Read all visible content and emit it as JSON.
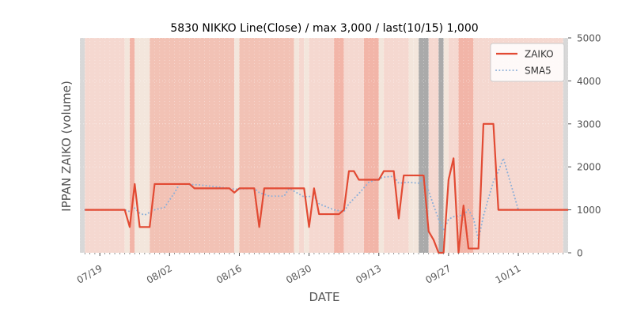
{
  "chart_data": {
    "type": "line",
    "title": "5830 NIKKO Line(Close) / max 3,000 / last(10/15) 1,000",
    "xlabel": "DATE",
    "ylabel": "IPPAN ZAIKO (volume)",
    "ylim": [
      0,
      5000
    ],
    "yticks": [
      0,
      1000,
      2000,
      3000,
      4000,
      5000
    ],
    "ytick_labels": [
      "0",
      "1000",
      "2000",
      "3000",
      "4000",
      "5000"
    ],
    "y_axis_side": "right",
    "x_start": "2021-07-15",
    "x_end": "2021-10-21",
    "xticks": [
      "2021-07-19",
      "2021-08-02",
      "2021-08-16",
      "2021-08-30",
      "2021-09-13",
      "2021-09-27",
      "2021-10-11"
    ],
    "xtick_labels": [
      "07/19",
      "08/02",
      "08/16",
      "08/30",
      "09/13",
      "09/27",
      "10/11"
    ],
    "grid": true,
    "legend_position": "top-right",
    "series": [
      {
        "name": "ZAIKO",
        "color": "#e24a33",
        "style": "solid",
        "points": [
          [
            "2021-07-16",
            1000
          ],
          [
            "2021-07-24",
            1000
          ],
          [
            "2021-07-25",
            600
          ],
          [
            "2021-07-26",
            1600
          ],
          [
            "2021-07-27",
            600
          ],
          [
            "2021-07-29",
            600
          ],
          [
            "2021-07-30",
            1600
          ],
          [
            "2021-08-06",
            1600
          ],
          [
            "2021-08-07",
            1500
          ],
          [
            "2021-08-14",
            1500
          ],
          [
            "2021-08-15",
            1400
          ],
          [
            "2021-08-16",
            1500
          ],
          [
            "2021-08-19",
            1500
          ],
          [
            "2021-08-20",
            600
          ],
          [
            "2021-08-21",
            1500
          ],
          [
            "2021-08-29",
            1500
          ],
          [
            "2021-08-30",
            600
          ],
          [
            "2021-08-31",
            1500
          ],
          [
            "2021-09-01",
            900
          ],
          [
            "2021-09-05",
            900
          ],
          [
            "2021-09-06",
            1000
          ],
          [
            "2021-09-07",
            1900
          ],
          [
            "2021-09-08",
            1900
          ],
          [
            "2021-09-09",
            1700
          ],
          [
            "2021-09-13",
            1700
          ],
          [
            "2021-09-14",
            1900
          ],
          [
            "2021-09-16",
            1900
          ],
          [
            "2021-09-17",
            800
          ],
          [
            "2021-09-18",
            1800
          ],
          [
            "2021-09-22",
            1800
          ],
          [
            "2021-09-23",
            500
          ],
          [
            "2021-09-24",
            300
          ],
          [
            "2021-09-25",
            0
          ],
          [
            "2021-09-26",
            0
          ],
          [
            "2021-09-27",
            1700
          ],
          [
            "2021-09-28",
            2200
          ],
          [
            "2021-09-29",
            0
          ],
          [
            "2021-09-30",
            1100
          ],
          [
            "2021-10-01",
            100
          ],
          [
            "2021-10-03",
            100
          ],
          [
            "2021-10-04",
            3000
          ],
          [
            "2021-10-06",
            3000
          ],
          [
            "2021-10-07",
            1000
          ],
          [
            "2021-10-21",
            1000
          ]
        ]
      },
      {
        "name": "SMA5",
        "color": "#8eb0d8",
        "style": "dotted",
        "points": [
          [
            "2021-07-16",
            1000
          ],
          [
            "2021-07-24",
            1000
          ],
          [
            "2021-07-25",
            960
          ],
          [
            "2021-07-26",
            1040
          ],
          [
            "2021-07-27",
            920
          ],
          [
            "2021-07-28",
            880
          ],
          [
            "2021-07-30",
            1000
          ],
          [
            "2021-08-01",
            1060
          ],
          [
            "2021-08-03",
            1400
          ],
          [
            "2021-08-04",
            1600
          ],
          [
            "2021-08-08",
            1580
          ],
          [
            "2021-08-14",
            1500
          ],
          [
            "2021-08-15",
            1480
          ],
          [
            "2021-08-19",
            1500
          ],
          [
            "2021-08-20",
            1400
          ],
          [
            "2021-08-22",
            1320
          ],
          [
            "2021-08-25",
            1320
          ],
          [
            "2021-08-26",
            1500
          ],
          [
            "2021-08-29",
            1300
          ],
          [
            "2021-08-31",
            1320
          ],
          [
            "2021-09-01",
            1140
          ],
          [
            "2021-09-04",
            1000
          ],
          [
            "2021-09-06",
            960
          ],
          [
            "2021-09-07",
            1140
          ],
          [
            "2021-09-09",
            1380
          ],
          [
            "2021-09-11",
            1640
          ],
          [
            "2021-09-14",
            1760
          ],
          [
            "2021-09-16",
            1780
          ],
          [
            "2021-09-17",
            1620
          ],
          [
            "2021-09-19",
            1640
          ],
          [
            "2021-09-21",
            1620
          ],
          [
            "2021-09-22",
            1740
          ],
          [
            "2021-09-23",
            1440
          ],
          [
            "2021-09-24",
            1100
          ],
          [
            "2021-09-25",
            780
          ],
          [
            "2021-09-26",
            520
          ],
          [
            "2021-09-27",
            780
          ],
          [
            "2021-09-28",
            840
          ],
          [
            "2021-09-30",
            880
          ],
          [
            "2021-10-01",
            1000
          ],
          [
            "2021-10-02",
            800
          ],
          [
            "2021-10-03",
            300
          ],
          [
            "2021-10-04",
            860
          ],
          [
            "2021-10-06",
            1660
          ],
          [
            "2021-10-07",
            1900
          ],
          [
            "2021-10-08",
            2200
          ],
          [
            "2021-10-11",
            1000
          ],
          [
            "2021-10-21",
            1000
          ]
        ]
      }
    ],
    "background_bands": [
      {
        "start": "2021-07-15",
        "end": "2021-07-16",
        "color": "#d8d8d8"
      },
      {
        "start": "2021-07-16",
        "end": "2021-07-24",
        "color": "#f5d8d0"
      },
      {
        "start": "2021-07-24",
        "end": "2021-07-25",
        "color": "#f3e6dc"
      },
      {
        "start": "2021-07-25",
        "end": "2021-07-26",
        "color": "#f2b5a8"
      },
      {
        "start": "2021-07-26",
        "end": "2021-07-29",
        "color": "#f3e6dc"
      },
      {
        "start": "2021-07-29",
        "end": "2021-08-15",
        "color": "#f2c2b5"
      },
      {
        "start": "2021-08-15",
        "end": "2021-08-16",
        "color": "#f3e6dc"
      },
      {
        "start": "2021-08-16",
        "end": "2021-08-27",
        "color": "#f2c2b5"
      },
      {
        "start": "2021-08-27",
        "end": "2021-08-28",
        "color": "#f3e6dc"
      },
      {
        "start": "2021-08-28",
        "end": "2021-08-29",
        "color": "#f5d8d0"
      },
      {
        "start": "2021-08-29",
        "end": "2021-08-30",
        "color": "#f3e6dc"
      },
      {
        "start": "2021-08-30",
        "end": "2021-09-04",
        "color": "#f5d8d0"
      },
      {
        "start": "2021-09-04",
        "end": "2021-09-06",
        "color": "#f2b5a8"
      },
      {
        "start": "2021-09-06",
        "end": "2021-09-10",
        "color": "#f5d8d0"
      },
      {
        "start": "2021-09-10",
        "end": "2021-09-13",
        "color": "#f2b5a8"
      },
      {
        "start": "2021-09-13",
        "end": "2021-09-14",
        "color": "#f3e6dc"
      },
      {
        "start": "2021-09-14",
        "end": "2021-09-19",
        "color": "#f5d8d0"
      },
      {
        "start": "2021-09-19",
        "end": "2021-09-20",
        "color": "#f3e6dc"
      },
      {
        "start": "2021-09-20",
        "end": "2021-09-21",
        "color": "#f3e6dc"
      },
      {
        "start": "2021-09-21",
        "end": "2021-09-23",
        "color": "#aaaaaa"
      },
      {
        "start": "2021-09-23",
        "end": "2021-09-25",
        "color": "#f5d8d0"
      },
      {
        "start": "2021-09-25",
        "end": "2021-09-26",
        "color": "#aaaaaa"
      },
      {
        "start": "2021-09-26",
        "end": "2021-09-27",
        "color": "#f3e6dc"
      },
      {
        "start": "2021-09-27",
        "end": "2021-09-29",
        "color": "#f5d8d0"
      },
      {
        "start": "2021-09-29",
        "end": "2021-10-02",
        "color": "#f2b5a8"
      },
      {
        "start": "2021-10-02",
        "end": "2021-10-20",
        "color": "#f5d8d0"
      },
      {
        "start": "2021-10-20",
        "end": "2021-10-21",
        "color": "#d8d8d8"
      }
    ]
  }
}
